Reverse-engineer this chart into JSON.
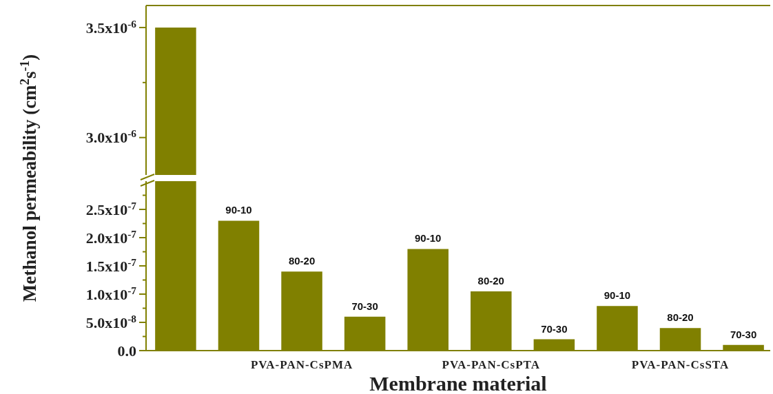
{
  "chart_data": [
    {
      "type": "bar",
      "categories": [
        null,
        null,
        null,
        null,
        null,
        null,
        null,
        null,
        null,
        null
      ],
      "values": [
        3.5e-06,
        null,
        null,
        null,
        null,
        null,
        null,
        null,
        null,
        null
      ],
      "color": "#808000",
      "ylim": [
        2.83e-06,
        3.6e-06
      ],
      "yticks": [
        {
          "value": 3e-06,
          "label": "3.0x10$^{-6}$"
        },
        {
          "value": 3.25e-06,
          "label": null
        },
        {
          "value": 3.5e-06,
          "label": "3.5x10$^{-6}$"
        }
      ],
      "tick_labels": "y",
      "ylabel": "Methanol permeability (cm$^{2}$s$^{-1}$)"
    },
    {
      "type": "bar",
      "categories": [
        null,
        null,
        null,
        null,
        null,
        null,
        null,
        null,
        null,
        null
      ],
      "values": [
        null,
        2.3e-07,
        1.4e-07,
        6e-08,
        1.8e-07,
        1.05e-07,
        2e-08,
        7.9e-08,
        4e-08,
        1e-08
      ],
      "value_labels": [
        null,
        "90-10",
        "80-20",
        "70-30",
        "90-10",
        "80-20",
        "70-30",
        "90-10",
        "80-20",
        "70-30"
      ],
      "color": "#808000",
      "ylim": [
        0,
        3e-07
      ],
      "yticks": [
        {
          "value": 0,
          "label": "0.0"
        },
        {
          "value": 2.5e-08,
          "label": null
        },
        {
          "value": 5e-08,
          "label": "5.0x10$^{-8}$"
        },
        {
          "value": 7.5e-08,
          "label": null
        },
        {
          "value": 1e-07,
          "label": "1.0x10$^{-7}$"
        },
        {
          "value": 1.25e-07,
          "label": null
        },
        {
          "value": 1.5e-07,
          "label": "1.5x10$^{-7}$"
        },
        {
          "value": 1.75e-07,
          "label": null
        },
        {
          "value": 2e-07,
          "label": "2.0x10$^{-7}$"
        },
        {
          "value": 2.25e-07,
          "label": null
        },
        {
          "value": 2.5e-07,
          "label": "2.5x10$^{-7}$"
        },
        {
          "value": 2.75e-07,
          "label": null
        }
      ],
      "xlabel": "Membrane material",
      "annotations": [
        "PVA-PAN-CsPMA",
        "PVA-PAN-CsPTA",
        "PVA-PAN-CsSTA"
      ]
    }
  ]
}
